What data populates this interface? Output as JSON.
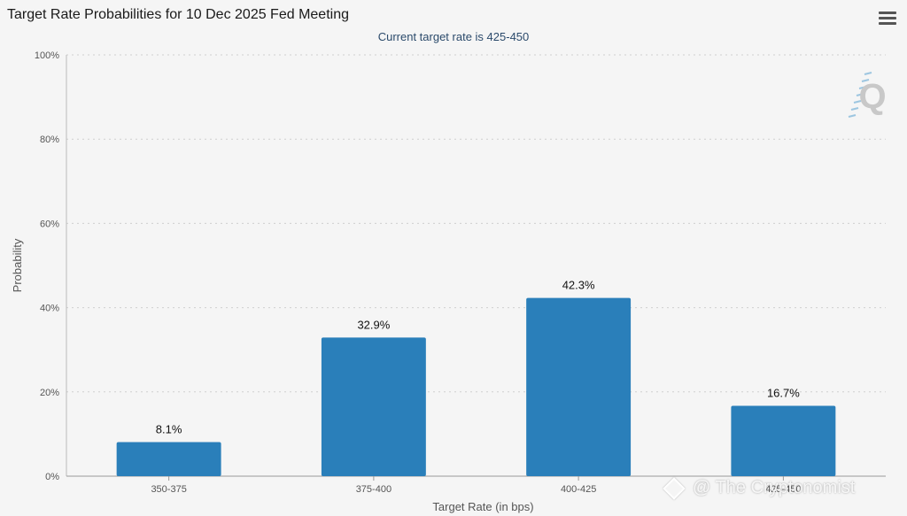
{
  "header": {
    "title": "Target Rate Probabilities for 10 Dec 2025 Fed Meeting",
    "subtitle": "Current target rate is 425-450",
    "menu_icon": "hamburger-menu-icon",
    "logo_text": "Q"
  },
  "watermark": {
    "text": "@ The Cryptonomist"
  },
  "chart_data": {
    "type": "bar",
    "categories": [
      "350-375",
      "375-400",
      "400-425",
      "425-450"
    ],
    "values": [
      8.1,
      32.9,
      42.3,
      16.7
    ],
    "data_labels": [
      "8.1%",
      "32.9%",
      "42.3%",
      "16.7%"
    ],
    "title": "Target Rate Probabilities for 10 Dec 2025 Fed Meeting",
    "subtitle": "Current target rate is 425-450",
    "xlabel": "Target Rate (in bps)",
    "ylabel": "Probability",
    "ylim": [
      0,
      100
    ],
    "yticks": [
      "0%",
      "20%",
      "40%",
      "60%",
      "80%",
      "100%"
    ],
    "grid": true,
    "bar_color": "#2a7fba"
  }
}
